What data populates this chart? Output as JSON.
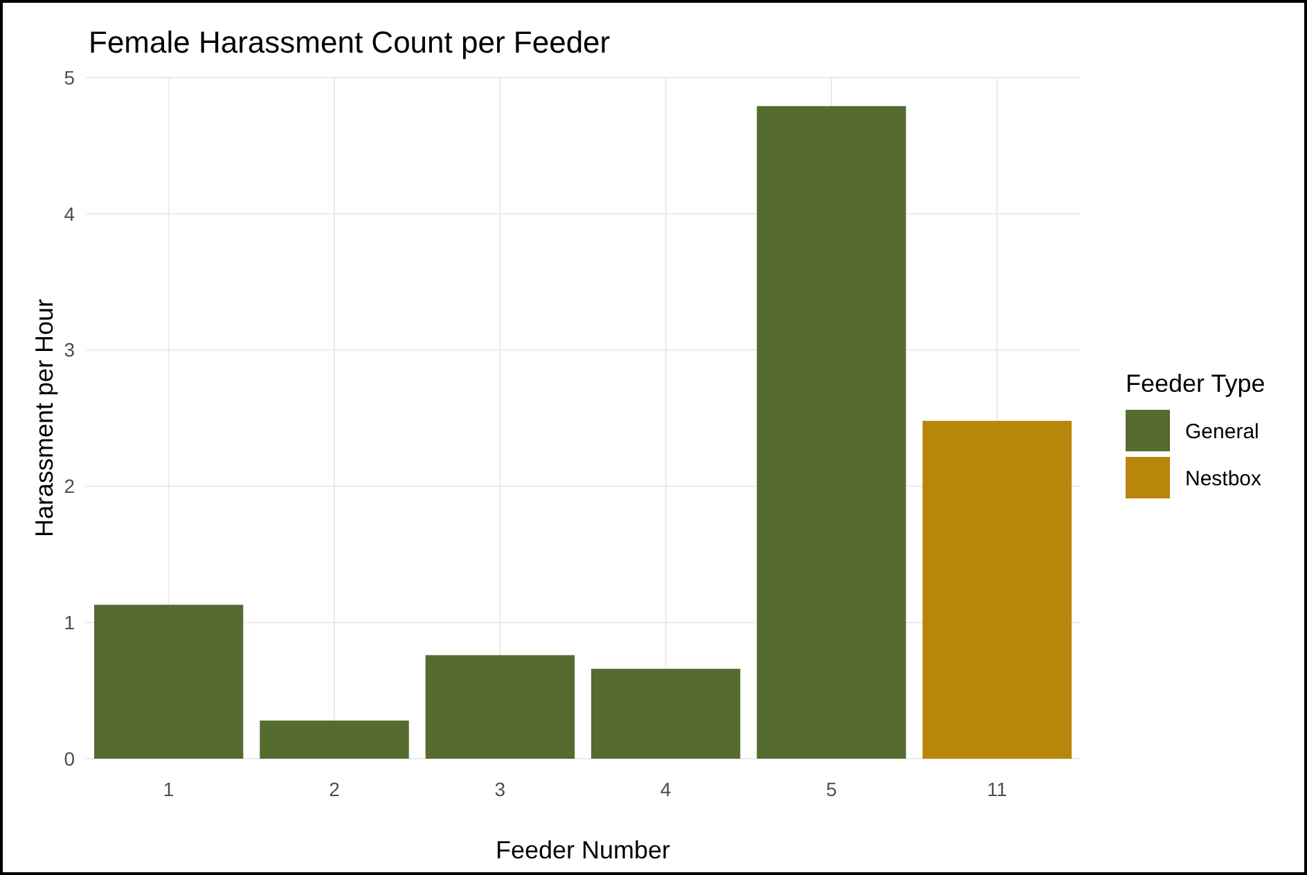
{
  "chart_data": {
    "type": "bar",
    "title": "Female Harassment Count per Feeder",
    "xlabel": "Feeder Number",
    "ylabel": "Harassment per Hour",
    "legend_title": "Feeder Type",
    "categories": [
      "1",
      "2",
      "3",
      "4",
      "5",
      "11"
    ],
    "series": [
      {
        "name": "General",
        "color": "#556b2f",
        "values": [
          1.13,
          0.28,
          0.76,
          0.66,
          4.79,
          null
        ]
      },
      {
        "name": "Nestbox",
        "color": "#b8860b",
        "values": [
          null,
          null,
          null,
          null,
          null,
          2.48
        ]
      }
    ],
    "ylim": [
      0,
      5
    ],
    "yticks": [
      0,
      1,
      2,
      3,
      4,
      5
    ],
    "grid": true,
    "legend": "right"
  }
}
